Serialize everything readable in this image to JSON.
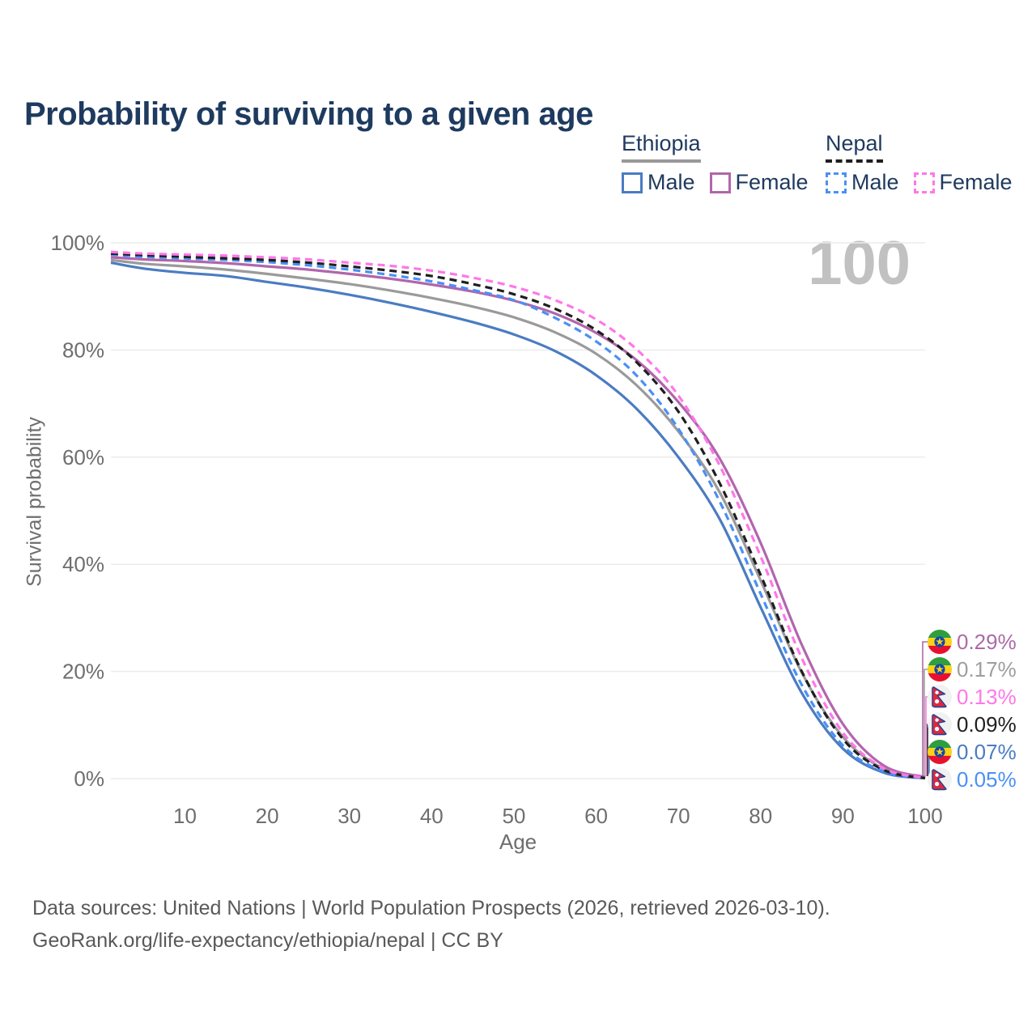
{
  "title": "Probability of surviving to a given age",
  "watermark": "100",
  "y_axis_title": "Survival probability",
  "legend": {
    "groups": [
      {
        "label": "Ethiopia",
        "underline_style": "solid",
        "underline_color": "#999999",
        "items": [
          {
            "label": "Male",
            "color": "#4a7cc2",
            "dashed": false
          },
          {
            "label": "Female",
            "color": "#b166ac",
            "dashed": false
          }
        ]
      },
      {
        "label": "Nepal",
        "underline_style": "dashed",
        "underline_color": "#1f1f1f",
        "items": [
          {
            "label": "Male",
            "color": "#4a90f5",
            "dashed": true
          },
          {
            "label": "Female",
            "color": "#ff77e8",
            "dashed": true
          }
        ]
      }
    ]
  },
  "chart_data": {
    "type": "line",
    "title": "Probability of surviving to a given age",
    "xlabel": "Age",
    "ylabel": "Survival probability",
    "xlim": [
      1,
      100
    ],
    "ylim": [
      0,
      100
    ],
    "grid": "horizontal",
    "gridline_color": "#ececec",
    "axis_text_color": "#6e6e6e",
    "x_ticks": [
      10,
      20,
      30,
      40,
      50,
      60,
      70,
      80,
      90,
      100
    ],
    "x_tick_labels": [
      "10",
      "20",
      "30",
      "40",
      "50",
      "60",
      "70",
      "80",
      "90",
      "100"
    ],
    "y_ticks": [
      0,
      20,
      40,
      60,
      80,
      100
    ],
    "y_tick_labels": [
      "0%",
      "20%",
      "40%",
      "60%",
      "80%",
      "100%"
    ],
    "x": [
      1,
      5,
      10,
      15,
      20,
      25,
      30,
      35,
      40,
      45,
      50,
      55,
      60,
      65,
      70,
      75,
      80,
      85,
      90,
      95,
      100
    ],
    "series": [
      {
        "key": "ethiopia_male",
        "name": "Ethiopia Male",
        "country": "Ethiopia",
        "sex": "Male",
        "color": "#4a7cc2",
        "dash": "solid",
        "values": [
          96.3,
          95.2,
          94.4,
          93.8,
          92.7,
          91.6,
          90.3,
          88.8,
          87.1,
          85.2,
          82.9,
          79.8,
          75.3,
          68.9,
          60.0,
          48.5,
          32.0,
          16.0,
          5.6,
          1.1,
          0.07
        ]
      },
      {
        "key": "ethiopia_all",
        "name": "Ethiopia",
        "country": "Ethiopia",
        "sex": "Both",
        "color": "#9a9a9a",
        "dash": "solid",
        "values": [
          96.8,
          96.1,
          95.6,
          95.0,
          94.2,
          93.3,
          92.3,
          91.1,
          89.7,
          88.1,
          86.1,
          83.3,
          79.3,
          73.3,
          64.8,
          53.5,
          37.0,
          19.8,
          7.8,
          1.8,
          0.17
        ]
      },
      {
        "key": "ethiopia_female",
        "name": "Ethiopia Female",
        "country": "Ethiopia",
        "sex": "Female",
        "color": "#b166ac",
        "dash": "solid",
        "values": [
          97.3,
          96.9,
          96.6,
          96.2,
          95.6,
          95.0,
          94.2,
          93.3,
          92.2,
          90.9,
          89.2,
          86.8,
          83.2,
          78.0,
          70.3,
          59.8,
          44.0,
          25.0,
          10.2,
          2.4,
          0.29
        ]
      },
      {
        "key": "nepal_male",
        "name": "Nepal Male",
        "country": "Nepal",
        "sex": "Male",
        "color": "#4a90f5",
        "dash": "dashed",
        "values": [
          97.8,
          97.4,
          97.1,
          96.8,
          96.4,
          95.8,
          95.0,
          94.0,
          92.8,
          91.2,
          89.3,
          86.0,
          81.6,
          75.1,
          65.3,
          51.8,
          34.5,
          17.5,
          6.2,
          1.3,
          0.05
        ]
      },
      {
        "key": "nepal_all",
        "name": "Nepal",
        "country": "Nepal",
        "sex": "Both",
        "color": "#1f1f1f",
        "dash": "dashed",
        "values": [
          98.0,
          97.7,
          97.4,
          97.1,
          96.8,
          96.3,
          95.6,
          94.8,
          93.8,
          92.3,
          90.4,
          87.7,
          83.7,
          77.6,
          68.5,
          55.2,
          38.0,
          20.0,
          7.4,
          1.6,
          0.09
        ]
      },
      {
        "key": "nepal_female",
        "name": "Nepal Female",
        "country": "Nepal",
        "sex": "Female",
        "color": "#ff77e8",
        "dash": "dashed",
        "values": [
          98.3,
          98.0,
          97.8,
          97.6,
          97.3,
          96.9,
          96.3,
          95.7,
          94.8,
          93.5,
          91.8,
          89.3,
          85.7,
          80.0,
          71.5,
          58.5,
          41.5,
          22.5,
          8.6,
          1.9,
          0.13
        ]
      }
    ],
    "end_labels": [
      {
        "series": "ethiopia_female",
        "text": "0.29%",
        "color": "#ab6aa6",
        "flag": "ethiopia"
      },
      {
        "series": "ethiopia_all",
        "text": "0.17%",
        "color": "#9e9e9e",
        "flag": "ethiopia"
      },
      {
        "series": "nepal_female",
        "text": "0.13%",
        "color": "#ff77e8",
        "flag": "nepal"
      },
      {
        "series": "nepal_all",
        "text": "0.09%",
        "color": "#1f1f1f",
        "flag": "nepal"
      },
      {
        "series": "ethiopia_male",
        "text": "0.07%",
        "color": "#4a7cc2",
        "flag": "ethiopia"
      },
      {
        "series": "nepal_male",
        "text": "0.05%",
        "color": "#4a90f5",
        "flag": "nepal"
      }
    ],
    "legend_position": "top-right"
  },
  "footer": {
    "line1": "Data sources: United Nations | World Population Prospects (2026, retrieved 2026-03-10).",
    "line2": "GeoRank.org/life-expectancy/ethiopia/nepal | CC BY"
  }
}
